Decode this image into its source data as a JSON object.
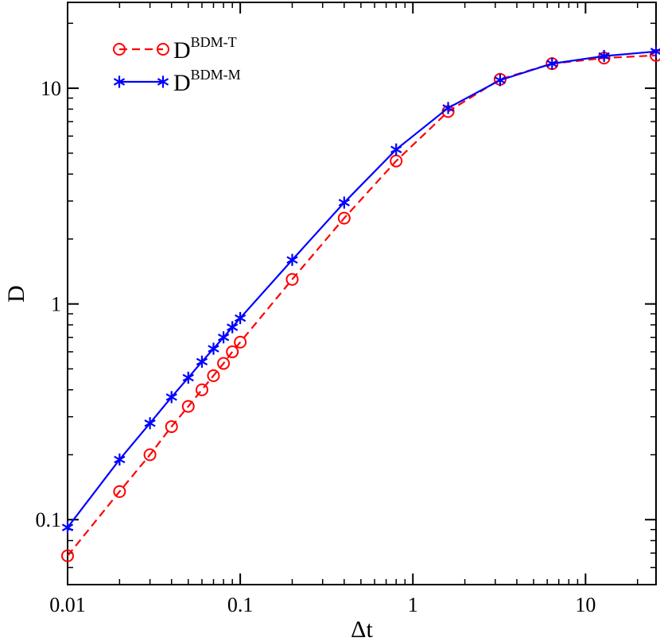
{
  "chart_data": {
    "type": "line",
    "title": "",
    "xlabel": "Δt",
    "ylabel": "D",
    "x_scale": "log",
    "y_scale": "log",
    "xlim": [
      0.01,
      25.6
    ],
    "ylim": [
      0.05,
      25
    ],
    "x_ticks": [
      {
        "value": 0.01,
        "label": "0.01"
      },
      {
        "value": 0.1,
        "label": "0.1"
      },
      {
        "value": 1,
        "label": "1"
      },
      {
        "value": 10,
        "label": "10"
      }
    ],
    "y_ticks": [
      {
        "value": 0.1,
        "label": "0.1"
      },
      {
        "value": 1,
        "label": "1"
      },
      {
        "value": 10,
        "label": "10"
      }
    ],
    "grid": false,
    "legend_position": "top-left",
    "series": [
      {
        "name": "D",
        "name_sup": "BDM-T",
        "color": "#ff0000",
        "line_style": "dashed",
        "marker": "circle",
        "points": [
          [
            0.01,
            0.068
          ],
          [
            0.02,
            0.135
          ],
          [
            0.03,
            0.2
          ],
          [
            0.04,
            0.27
          ],
          [
            0.05,
            0.335
          ],
          [
            0.06,
            0.4
          ],
          [
            0.07,
            0.465
          ],
          [
            0.08,
            0.53
          ],
          [
            0.09,
            0.6
          ],
          [
            0.1,
            0.665
          ],
          [
            0.2,
            1.3
          ],
          [
            0.4,
            2.5
          ],
          [
            0.8,
            4.6
          ],
          [
            1.6,
            7.8
          ],
          [
            3.2,
            11.0
          ],
          [
            6.4,
            13.0
          ],
          [
            12.8,
            13.8
          ],
          [
            25.6,
            14.2
          ]
        ]
      },
      {
        "name": "D",
        "name_sup": "BDM-M",
        "color": "#0000ff",
        "line_style": "solid",
        "marker": "asterisk",
        "points": [
          [
            0.01,
            0.092
          ],
          [
            0.02,
            0.19
          ],
          [
            0.03,
            0.28
          ],
          [
            0.04,
            0.37
          ],
          [
            0.05,
            0.455
          ],
          [
            0.06,
            0.54
          ],
          [
            0.07,
            0.62
          ],
          [
            0.08,
            0.7
          ],
          [
            0.09,
            0.78
          ],
          [
            0.1,
            0.86
          ],
          [
            0.2,
            1.6
          ],
          [
            0.4,
            2.95
          ],
          [
            0.8,
            5.2
          ],
          [
            1.6,
            8.1
          ],
          [
            3.2,
            10.9
          ],
          [
            6.4,
            13.0
          ],
          [
            12.8,
            14.1
          ],
          [
            25.6,
            14.8
          ]
        ]
      }
    ]
  }
}
